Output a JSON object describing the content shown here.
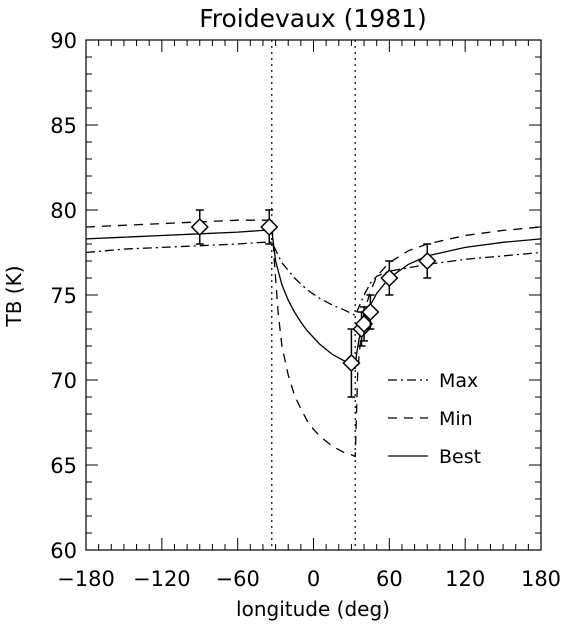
{
  "chart_data": {
    "type": "line",
    "title": "Froidevaux (1981)",
    "xlabel": "longitude (deg)",
    "ylabel": "TB (K)",
    "xlim": [
      -180,
      180
    ],
    "ylim": [
      60,
      90
    ],
    "x_ticks": [
      -180,
      -120,
      -60,
      0,
      60,
      120,
      180
    ],
    "y_ticks": [
      60,
      65,
      70,
      75,
      80,
      85,
      90
    ],
    "x_tick_labels": [
      "−180",
      "−120",
      "−60",
      "0",
      "60",
      "120",
      "180"
    ],
    "y_tick_labels": [
      "60",
      "65",
      "70",
      "75",
      "80",
      "85",
      "90"
    ],
    "grid": false,
    "legend_position": "lower-right",
    "vertical_reference_lines": [
      -33,
      33
    ],
    "series": [
      {
        "name": "Max",
        "style": "dash-dot",
        "x": [
          -180,
          -150,
          -120,
          -90,
          -60,
          -40,
          -33,
          -25,
          -15,
          -5,
          5,
          15,
          25,
          33,
          36,
          40,
          45,
          50,
          60,
          75,
          90,
          120,
          150,
          180
        ],
        "y": [
          77.5,
          77.7,
          77.8,
          77.9,
          78.0,
          78.1,
          78.1,
          76.9,
          76.0,
          75.3,
          74.8,
          74.4,
          74.1,
          73.8,
          74.3,
          75.0,
          75.7,
          76.1,
          76.4,
          76.6,
          76.8,
          77.1,
          77.3,
          77.5
        ]
      },
      {
        "name": "Min",
        "style": "dashed",
        "x": [
          -180,
          -150,
          -120,
          -90,
          -60,
          -40,
          -33,
          -31,
          -28,
          -25,
          -20,
          -15,
          -10,
          -5,
          0,
          5,
          10,
          15,
          20,
          25,
          30,
          33,
          34,
          35,
          38,
          40,
          45,
          50,
          60,
          75,
          90,
          120,
          150,
          180
        ],
        "y": [
          79.0,
          79.1,
          79.2,
          79.3,
          79.4,
          79.4,
          79.4,
          77.0,
          74.0,
          72.0,
          70.3,
          69.1,
          68.3,
          67.6,
          67.1,
          66.7,
          66.4,
          66.1,
          65.9,
          65.7,
          65.6,
          65.5,
          68.0,
          70.5,
          73.0,
          74.0,
          75.2,
          76.1,
          76.9,
          77.6,
          78.0,
          78.5,
          78.8,
          79.0
        ]
      },
      {
        "name": "Best",
        "style": "solid",
        "x": [
          -180,
          -150,
          -120,
          -90,
          -60,
          -40,
          -33,
          -30,
          -25,
          -20,
          -15,
          -10,
          -5,
          0,
          5,
          10,
          15,
          20,
          25,
          30,
          33,
          34,
          36,
          38,
          40,
          45,
          50,
          60,
          75,
          90,
          120,
          150,
          180
        ],
        "y": [
          78.3,
          78.4,
          78.5,
          78.6,
          78.7,
          78.8,
          78.8,
          77.0,
          75.6,
          74.7,
          74.0,
          73.4,
          72.9,
          72.5,
          72.1,
          71.8,
          71.5,
          71.3,
          71.1,
          70.9,
          70.7,
          71.5,
          72.4,
          73.0,
          73.5,
          74.4,
          75.1,
          76.0,
          76.8,
          77.3,
          77.8,
          78.1,
          78.3
        ]
      }
    ],
    "data_points": {
      "marker": "diamond",
      "x": [
        -90,
        -35,
        30,
        38,
        40,
        45,
        60,
        90
      ],
      "y": [
        79.0,
        79.0,
        71.0,
        73.0,
        73.3,
        74.0,
        76.0,
        77.0
      ],
      "err": [
        1.0,
        1.0,
        2.0,
        1.0,
        1.0,
        1.0,
        1.0,
        1.0
      ]
    }
  }
}
